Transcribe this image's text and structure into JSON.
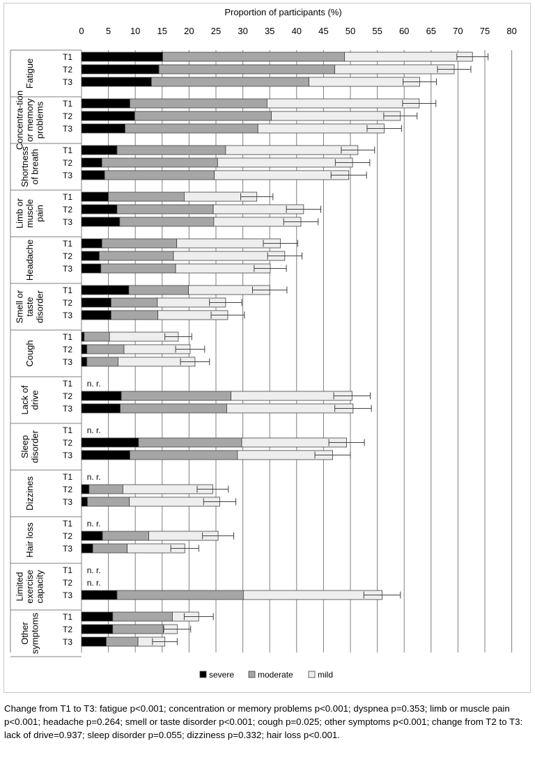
{
  "chart_data": {
    "type": "bar",
    "orientation": "horizontal",
    "stacked": true,
    "xlabel": "Proportion of participants (%)",
    "xlim": [
      0,
      80
    ],
    "xticks": [
      0,
      5,
      10,
      15,
      20,
      25,
      30,
      35,
      40,
      45,
      50,
      55,
      60,
      65,
      70,
      75,
      80
    ],
    "grid": true,
    "legend_position": "bottom",
    "series": [
      {
        "name": "severe",
        "color": "#000000"
      },
      {
        "name": "moderate",
        "color": "#a6a6a6"
      },
      {
        "name": "mild",
        "color": "#eeeeee"
      }
    ],
    "not_reported_label": "n. r.",
    "groups": [
      {
        "label": "Fatigue",
        "bars": [
          {
            "time": "T1",
            "severe": 15.1,
            "moderate": 33.8,
            "mild": 23.8,
            "error": 2.9
          },
          {
            "time": "T2",
            "severe": 14.4,
            "moderate": 32.7,
            "mild": 22.2,
            "error": 3.1
          },
          {
            "time": "T3",
            "severe": 13.0,
            "moderate": 29.3,
            "mild": 20.6,
            "error": 3.1
          }
        ]
      },
      {
        "label": "Concentra-tion or memory problems",
        "bars": [
          {
            "time": "T1",
            "severe": 9.0,
            "moderate": 25.5,
            "mild": 28.3,
            "error": 3.1
          },
          {
            "time": "T2",
            "severe": 9.9,
            "moderate": 25.4,
            "mild": 24.0,
            "error": 3.1
          },
          {
            "time": "T3",
            "severe": 8.1,
            "moderate": 24.7,
            "mild": 23.5,
            "error": 3.2
          }
        ]
      },
      {
        "label": "Shortness of breath",
        "bars": [
          {
            "time": "T1",
            "severe": 6.6,
            "moderate": 20.2,
            "mild": 24.6,
            "error": 3.1
          },
          {
            "time": "T2",
            "severe": 3.8,
            "moderate": 21.5,
            "mild": 25.1,
            "error": 3.2
          },
          {
            "time": "T3",
            "severe": 4.3,
            "moderate": 20.4,
            "mild": 25.0,
            "error": 3.3
          }
        ]
      },
      {
        "label": "Limb or muscle pain",
        "bars": [
          {
            "time": "T1",
            "severe": 5.0,
            "moderate": 14.1,
            "mild": 13.5,
            "error": 3.0
          },
          {
            "time": "T2",
            "severe": 6.6,
            "moderate": 17.9,
            "mild": 16.8,
            "error": 3.2
          },
          {
            "time": "T3",
            "severe": 7.1,
            "moderate": 17.5,
            "mild": 16.2,
            "error": 3.2
          }
        ]
      },
      {
        "label": "Headache",
        "bars": [
          {
            "time": "T1",
            "severe": 3.8,
            "moderate": 13.9,
            "mild": 19.3,
            "error": 3.2
          },
          {
            "time": "T2",
            "severe": 3.3,
            "moderate": 13.8,
            "mild": 20.7,
            "error": 3.2
          },
          {
            "time": "T3",
            "severe": 3.6,
            "moderate": 13.9,
            "mild": 17.6,
            "error": 3.0
          }
        ]
      },
      {
        "label": "Smell or taste disorder",
        "bars": [
          {
            "time": "T1",
            "severe": 8.8,
            "moderate": 11.1,
            "mild": 15.1,
            "error": 3.2
          },
          {
            "time": "T2",
            "severe": 5.5,
            "moderate": 8.6,
            "mild": 12.7,
            "error": 3.0
          },
          {
            "time": "T3",
            "severe": 5.5,
            "moderate": 8.7,
            "mild": 13.0,
            "error": 3.1
          }
        ]
      },
      {
        "label": "Cough",
        "bars": [
          {
            "time": "T1",
            "severe": 0.5,
            "moderate": 4.7,
            "mild": 12.8,
            "error": 2.5
          },
          {
            "time": "T2",
            "severe": 1.0,
            "moderate": 6.9,
            "mild": 12.3,
            "error": 2.7
          },
          {
            "time": "T3",
            "severe": 1.0,
            "moderate": 5.8,
            "mild": 14.3,
            "error": 2.7
          }
        ]
      },
      {
        "label": "Lack of drive",
        "bars": [
          {
            "time": "T1",
            "not_reported": true
          },
          {
            "time": "T2",
            "severe": 7.4,
            "moderate": 20.4,
            "mild": 22.5,
            "error": 3.4
          },
          {
            "time": "T3",
            "severe": 7.2,
            "moderate": 19.8,
            "mild": 23.5,
            "error": 3.4
          }
        ]
      },
      {
        "label": "Sleep disorder",
        "bars": [
          {
            "time": "T1",
            "not_reported": true
          },
          {
            "time": "T2",
            "severe": 10.6,
            "moderate": 19.2,
            "mild": 19.5,
            "error": 3.3
          },
          {
            "time": "T3",
            "severe": 9.0,
            "moderate": 20.0,
            "mild": 17.7,
            "error": 3.3
          }
        ]
      },
      {
        "label": "Dizzines",
        "bars": [
          {
            "time": "T1",
            "not_reported": true
          },
          {
            "time": "T2",
            "severe": 1.4,
            "moderate": 6.3,
            "mild": 16.7,
            "error": 2.9
          },
          {
            "time": "T3",
            "severe": 1.1,
            "moderate": 7.8,
            "mild": 16.8,
            "error": 3.0
          }
        ]
      },
      {
        "label": "Hair loss",
        "bars": [
          {
            "time": "T1",
            "not_reported": true
          },
          {
            "time": "T2",
            "severe": 3.9,
            "moderate": 8.6,
            "mild": 12.9,
            "error": 2.9
          },
          {
            "time": "T3",
            "severe": 2.1,
            "moderate": 6.4,
            "mild": 10.7,
            "error": 2.6
          }
        ]
      },
      {
        "label": "Limited exercise capacity",
        "bars": [
          {
            "time": "T1",
            "not_reported": true
          },
          {
            "time": "T2",
            "not_reported": true
          },
          {
            "time": "T3",
            "severe": 6.6,
            "moderate": 23.5,
            "mild": 25.8,
            "error": 3.4
          }
        ]
      },
      {
        "label": "Other symptoms",
        "bars": [
          {
            "time": "T1",
            "severe": 5.8,
            "moderate": 11.1,
            "mild": 4.9,
            "error": 2.7
          },
          {
            "time": "T2",
            "severe": 5.8,
            "moderate": 9.4,
            "mild": 2.6,
            "error": 2.5
          },
          {
            "time": "T3",
            "severe": 4.6,
            "moderate": 5.9,
            "mild": 5.0,
            "error": 2.3
          }
        ]
      }
    ]
  },
  "caption": "Change from T1 to T3: fatigue p<0.001; concentration or memory problems p<0.001; dyspnea p=0.353; limb or muscle pain p<0.001; headache p=0.264; smell or taste disorder p<0.001; cough p=0.025; other symptoms p<0.001; change from T2 to T3: lack of drive=0.937; sleep disorder p=0.055; dizziness p=0.332; hair loss p<0.001."
}
